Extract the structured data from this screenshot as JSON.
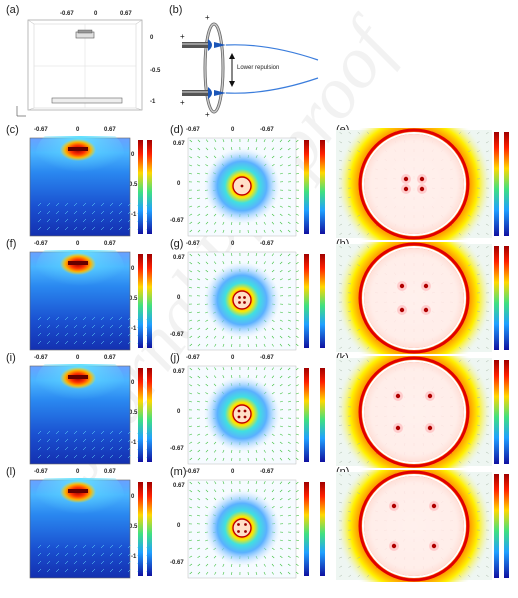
{
  "labels": {
    "a": "(a)",
    "b": "(b)",
    "c": "(c)",
    "d": "(d)",
    "e": "(e)",
    "f": "(f)",
    "g": "(g)",
    "h": "(h)",
    "i": "(i)",
    "j": "(j)",
    "k": "(k)",
    "l": "(l)",
    "m": "(m)",
    "n": "(n)"
  },
  "axis_ticks": {
    "neg": "-0.67",
    "zero": "0",
    "pos": "0.67",
    "mid": "-0.5",
    "bottom": "-1"
  },
  "annotation": {
    "lower_repulsion": "Lower repulsion",
    "plus": "+"
  },
  "watermark": "Journal Pre-proof",
  "colors": {
    "field_high": "#d40000",
    "field_mid": "#f6e000",
    "field_low": "#1428d4",
    "background_blue": "#1a5cd6",
    "cyan": "#2ad4e6",
    "wire_blue": "#3b7ddc"
  }
}
